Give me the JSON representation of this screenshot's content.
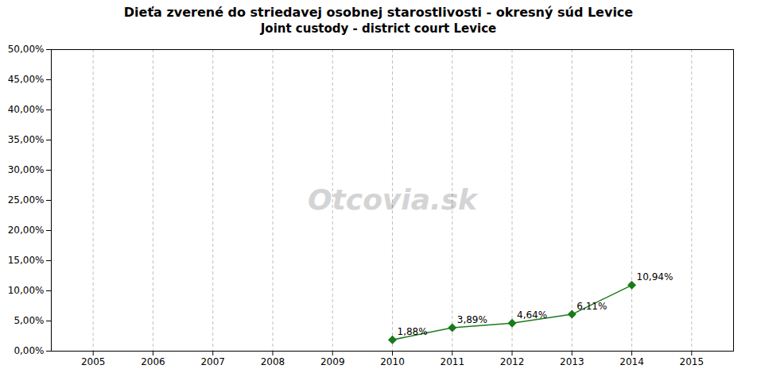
{
  "chart_data": {
    "type": "line",
    "title": "Dieťa zverené do striedavej osobnej starostlivosti - okresný súd Levice",
    "subtitle": "Joint custody - district court Levice",
    "x": [
      2010,
      2011,
      2012,
      2013,
      2014
    ],
    "values": [
      1.88,
      3.89,
      4.64,
      6.11,
      10.94
    ],
    "value_labels": [
      "1,88%",
      "3,89%",
      "4,64%",
      "6,11%",
      "10,94%"
    ],
    "data_labels": true,
    "color": "#1a7a1a",
    "marker": "diamond",
    "xlim": [
      2004.3,
      2015.7
    ],
    "xticks": [
      2005,
      2006,
      2007,
      2008,
      2009,
      2010,
      2011,
      2012,
      2013,
      2014,
      2015
    ],
    "ylim": [
      0.0,
      50.0
    ],
    "yticks": [
      {
        "value": 0.0,
        "label": "0,00%"
      },
      {
        "value": 5.0,
        "label": "5,00%"
      },
      {
        "value": 10.0,
        "label": "10,00%"
      },
      {
        "value": 15.0,
        "label": "15,00%"
      },
      {
        "value": 20.0,
        "label": "20,00%"
      },
      {
        "value": 25.0,
        "label": "25,00%"
      },
      {
        "value": 30.0,
        "label": "30,00%"
      },
      {
        "value": 35.0,
        "label": "35,00%"
      },
      {
        "value": 40.0,
        "label": "40,00%"
      },
      {
        "value": 45.0,
        "label": "45,00%"
      },
      {
        "value": 50.0,
        "label": "50,00%"
      }
    ],
    "grid": "x",
    "annotations": [
      {
        "text": "Otcovia.sk"
      }
    ]
  }
}
